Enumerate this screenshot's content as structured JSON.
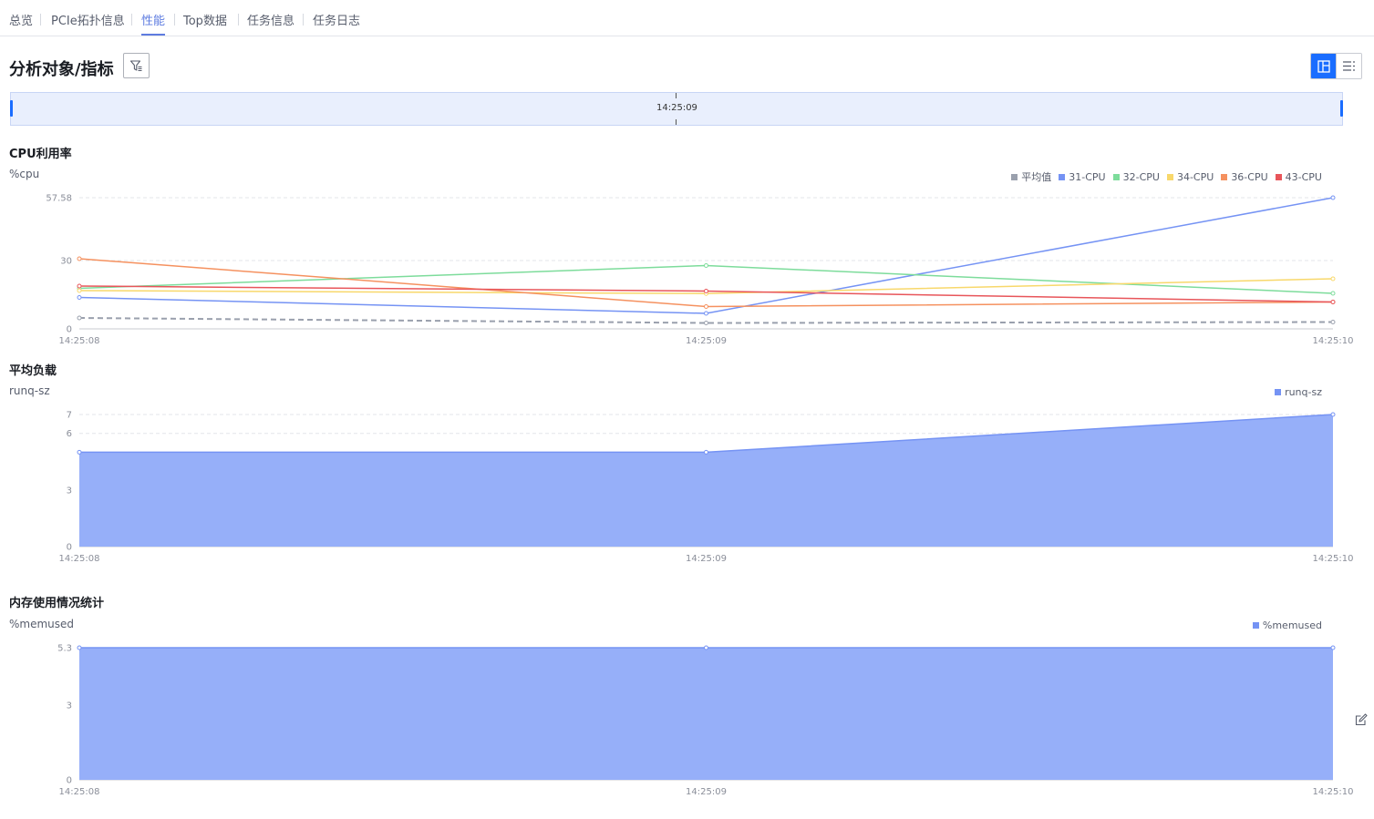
{
  "tabs": [
    {
      "label": "总览",
      "active": false
    },
    {
      "label": "PCIe拓扑信息",
      "active": false
    },
    {
      "label": "性能",
      "active": true
    },
    {
      "label": "Top数据",
      "active": false
    },
    {
      "label": "任务信息",
      "active": false
    },
    {
      "label": "任务日志",
      "active": false
    }
  ],
  "header": {
    "title": "分析对象/指标",
    "filter_icon": "filter-icon",
    "view_icons": [
      "card-view-icon",
      "list-view-icon"
    ]
  },
  "time_slider": {
    "label": "14:25:09",
    "start_fraction": 0,
    "end_fraction": 1
  },
  "colors": {
    "accent": "#5e7ce0",
    "primary_button": "#1a6dff",
    "avg": "#9aa0ad",
    "cpu31": "#7593f4",
    "cpu32": "#7ddc9b",
    "cpu34": "#f8d86b",
    "cpu36": "#f5915f",
    "cpu43": "#e8555a",
    "area_fill": "#96aff9",
    "area_line": "#7593f4"
  },
  "chart_data": [
    {
      "type": "line",
      "title": "CPU利用率",
      "ylabel": "%cpu",
      "x": [
        "14:25:08",
        "14:25:09",
        "14:25:10"
      ],
      "ylim": [
        0,
        57.58
      ],
      "yticks": [
        "57.58",
        "30",
        "0"
      ],
      "legend_position": "top-right",
      "grid": true,
      "series": [
        {
          "name": "平均值",
          "values": [
            4.8,
            2.6,
            3.0
          ],
          "color": "#9aa0ad",
          "dashed": true
        },
        {
          "name": "31-CPU",
          "values": [
            13.8,
            6.8,
            57.58
          ],
          "color": "#7593f4"
        },
        {
          "name": "32-CPU",
          "values": [
            17.8,
            27.8,
            15.6
          ],
          "color": "#7ddc9b"
        },
        {
          "name": "34-CPU",
          "values": [
            16.8,
            15.5,
            22.0
          ],
          "color": "#f8d86b"
        },
        {
          "name": "36-CPU",
          "values": [
            30.8,
            9.8,
            11.8
          ],
          "color": "#f5915f"
        },
        {
          "name": "43-CPU",
          "values": [
            18.8,
            16.6,
            11.8
          ],
          "color": "#e8555a"
        }
      ]
    },
    {
      "type": "area",
      "title": "平均负载",
      "ylabel": "runq-sz",
      "x": [
        "14:25:08",
        "14:25:09",
        "14:25:10"
      ],
      "ylim": [
        0,
        7
      ],
      "yticks": [
        "7",
        "6",
        "3",
        "0"
      ],
      "legend_position": "top-right",
      "grid": true,
      "series": [
        {
          "name": "runq-sz",
          "values": [
            5,
            5,
            7
          ],
          "color": "#7593f4"
        }
      ]
    },
    {
      "type": "area",
      "title": "内存使用情况统计",
      "ylabel": "%memused",
      "x": [
        "14:25:08",
        "14:25:09",
        "14:25:10"
      ],
      "ylim": [
        0,
        5.3
      ],
      "yticks": [
        "5.3",
        "3",
        "0"
      ],
      "legend_position": "top-right",
      "grid": true,
      "series": [
        {
          "name": "%memused",
          "values": [
            5.3,
            5.3,
            5.3
          ],
          "color": "#7593f4"
        }
      ]
    }
  ],
  "edit_icon": "edit-icon"
}
